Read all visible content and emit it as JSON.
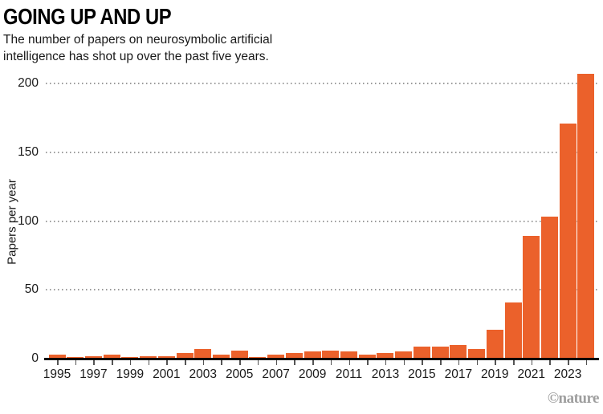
{
  "header": {
    "title": "GOING UP AND UP",
    "subtitle": "The number of papers on neurosymbolic artificial intelligence has shot up over the past five years."
  },
  "chart_data": {
    "type": "bar",
    "title": "GOING UP AND UP",
    "subtitle": "The number of papers on neurosymbolic artificial intelligence has shot up over the past five years.",
    "categories": [
      1995,
      1996,
      1997,
      1998,
      1999,
      2000,
      2001,
      2002,
      2003,
      2004,
      2005,
      2006,
      2007,
      2008,
      2009,
      2010,
      2011,
      2012,
      2013,
      2014,
      2015,
      2016,
      2017,
      2018,
      2019,
      2020,
      2021,
      2022,
      2023,
      2024
    ],
    "values": [
      3,
      1,
      2,
      3,
      1,
      2,
      2,
      4,
      7,
      3,
      6,
      1,
      3,
      4,
      5,
      6,
      5,
      3,
      4,
      5,
      9,
      9,
      10,
      7,
      21,
      41,
      89,
      103,
      171,
      207
    ],
    "xlabel": "",
    "ylabel": "Papers per year",
    "ylim": [
      0,
      210
    ],
    "yticks": [
      0,
      50,
      100,
      150,
      200
    ],
    "xtick_labels": [
      "1995",
      "1997",
      "1999",
      "2001",
      "2003",
      "2005",
      "2007",
      "2009",
      "2011",
      "2013",
      "2015",
      "2017",
      "2019",
      "2021",
      "2023"
    ],
    "grid": "horizontal-dotted",
    "legend": "none",
    "bar_color": "#EB612B",
    "grid_color": "#9a9a9a",
    "axis_color": "#000000"
  },
  "footer": {
    "credit": "©nature"
  }
}
